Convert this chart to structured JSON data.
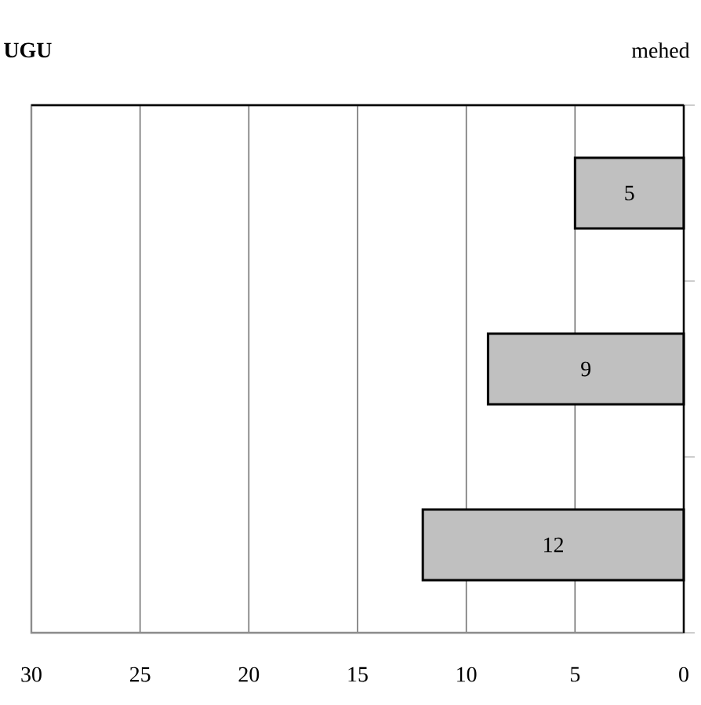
{
  "chart_data": {
    "type": "bar",
    "orientation": "horizontal",
    "title": "UGU",
    "subtitle": "mehed",
    "categories": [
      null,
      null,
      null
    ],
    "values": [
      5,
      9,
      12
    ],
    "color": "#c0c0c0",
    "xlim": [
      30,
      0
    ],
    "xticks": [
      0,
      5,
      10,
      15,
      20,
      25,
      30
    ],
    "grid": "x",
    "data_labels": true
  }
}
